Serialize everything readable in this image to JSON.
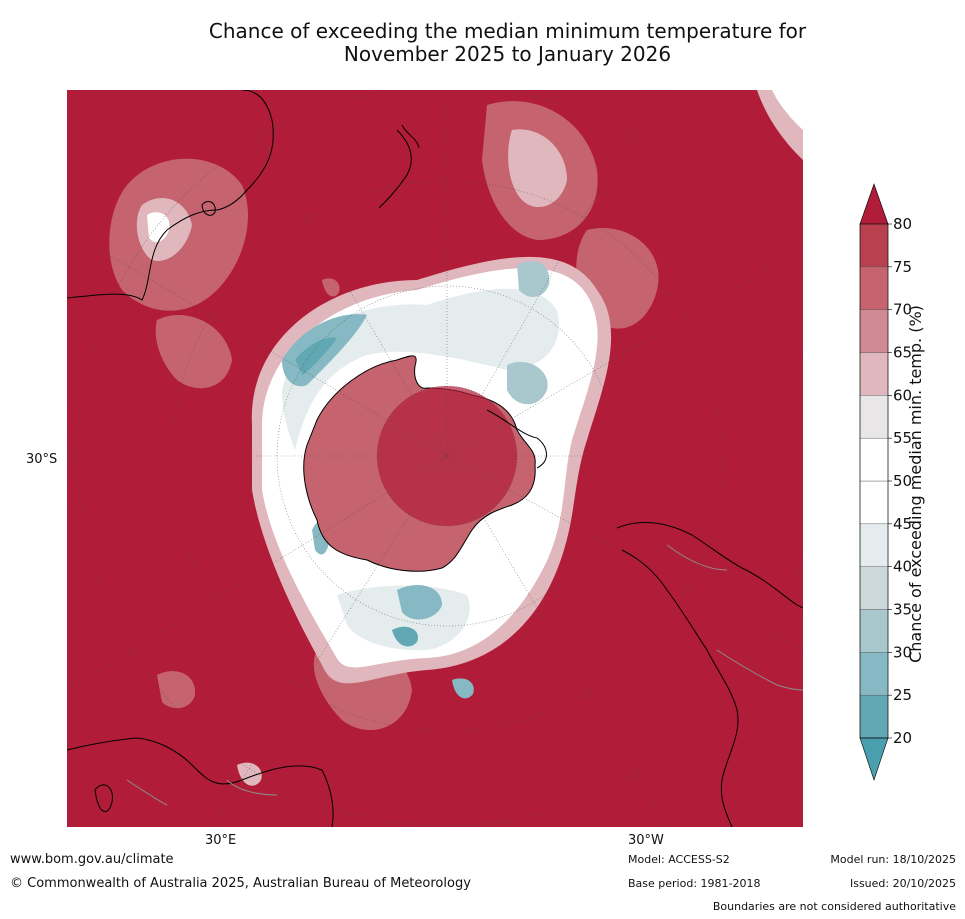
{
  "title": {
    "line1": "Chance of exceeding the median minimum temperature for",
    "line2": "November 2025 to January 2026"
  },
  "map_labels": {
    "lat_30s": "30°S",
    "lon_30e": "30°E",
    "lon_30w": "30°W"
  },
  "colorbar": {
    "title": "Chance of exceeding median min. temp. (%)",
    "ticks": [
      "20",
      "25",
      "30",
      "35",
      "40",
      "45",
      "50",
      "55",
      "60",
      "65",
      "70",
      "75",
      "80"
    ],
    "bins": [
      {
        "from": 20,
        "to": 25,
        "color": "#62a8b4"
      },
      {
        "from": 25,
        "to": 30,
        "color": "#86b9c3"
      },
      {
        "from": 30,
        "to": 35,
        "color": "#a9c8cd"
      },
      {
        "from": 35,
        "to": 40,
        "color": "#ccd8da"
      },
      {
        "from": 40,
        "to": 45,
        "color": "#e5ecee"
      },
      {
        "from": 45,
        "to": 50,
        "color": "#ffffff"
      },
      {
        "from": 50,
        "to": 55,
        "color": "#ffffff"
      },
      {
        "from": 55,
        "to": 60,
        "color": "#e8e6e6"
      },
      {
        "from": 60,
        "to": 65,
        "color": "#e0b7bd"
      },
      {
        "from": 65,
        "to": 70,
        "color": "#d08a94"
      },
      {
        "from": 70,
        "to": 75,
        "color": "#c5646f"
      },
      {
        "from": 75,
        "to": 80,
        "color": "#b8404f"
      }
    ],
    "under_color": "#4a9fae",
    "over_color": "#b11c38"
  },
  "colors": {
    "background": "#b11c38",
    "warm_mid": "#c5646f",
    "warm_light": "#e0b7bd",
    "neutral": "#ffffff",
    "cool_light": "#ccd8da",
    "cool": "#62a8b4",
    "land_outline": "#000000",
    "border_grey": "#8c8c8c"
  },
  "footer": {
    "url": "www.bom.gov.au/climate",
    "copyright": "© Commonwealth of Australia 2025, Australian Bureau of Meteorology",
    "model": "Model: ACCESS-S2",
    "base_period": "Base period: 1981-2018",
    "model_run": "Model run: 18/10/2025",
    "issued": "Issued: 20/10/2025",
    "disclaimer": "Boundaries are not considered authoritative"
  }
}
